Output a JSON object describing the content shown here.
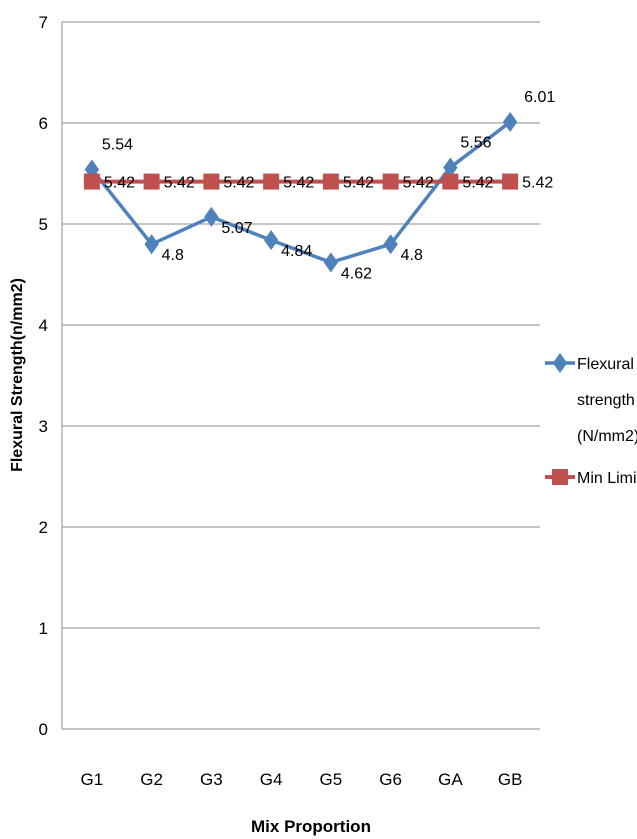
{
  "chart_data": {
    "type": "line",
    "title": "",
    "xlabel": "Mix Proportion",
    "ylabel": "Flexural Strength(n/mm2)",
    "categories": [
      "G1",
      "G2",
      "G3",
      "G4",
      "G5",
      "G6",
      "GA",
      "GB"
    ],
    "ylim": [
      0,
      7
    ],
    "yticks": [
      0,
      1,
      2,
      3,
      4,
      5,
      6,
      7
    ],
    "grid": true,
    "legend_position": "right",
    "series": [
      {
        "name": "Flexural strength (N/mm2)",
        "legend_lines": [
          "Flexural",
          "strength",
          "(N/mm2)"
        ],
        "values": [
          5.54,
          4.8,
          5.07,
          4.84,
          4.62,
          4.8,
          5.56,
          6.01
        ],
        "labels": [
          "5.54",
          "4.8",
          "5.07",
          "4.84",
          "4.62",
          "4.8",
          "5.56",
          "6.01"
        ],
        "color": "#4f81bd",
        "marker": "diamond"
      },
      {
        "name": "Min Limit",
        "legend_lines": [
          "Min Limit"
        ],
        "values": [
          5.42,
          5.42,
          5.42,
          5.42,
          5.42,
          5.42,
          5.42,
          5.42
        ],
        "labels": [
          "5.42",
          "5.42",
          "5.42",
          "5.42",
          "5.42",
          "5.42",
          "5.42",
          "5.42"
        ],
        "color": "#c0504d",
        "marker": "square"
      }
    ]
  }
}
